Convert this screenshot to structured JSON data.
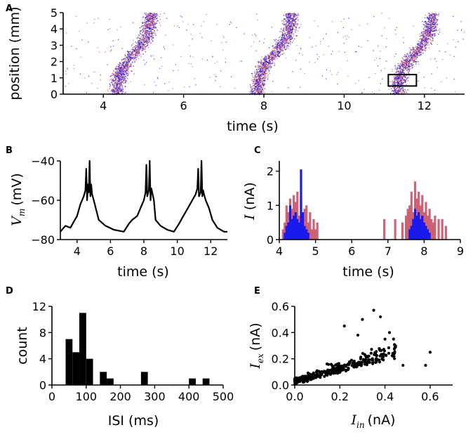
{
  "colors": {
    "excitatory": "#c8546a",
    "inhibitory": "#1a1aee",
    "trace": "#000000"
  },
  "chart_data": [
    {
      "panel": "A",
      "type": "scatter",
      "title": "",
      "xlabel": "time (s)",
      "ylabel": "position (mm)",
      "xlim": [
        3,
        13
      ],
      "ylim": [
        0,
        5
      ],
      "xticks": [
        4,
        6,
        8,
        10,
        12
      ],
      "yticks": [
        0,
        1,
        2,
        3,
        4,
        5
      ],
      "series": [
        {
          "name": "excitatory spikes",
          "color": "#c8546a"
        },
        {
          "name": "inhibitory spikes",
          "color": "#1a1aee"
        }
      ],
      "bursts": [
        {
          "start": 4.0,
          "end": 5.6,
          "position_min": 0,
          "position_max": 5
        },
        {
          "start": 7.5,
          "end": 9.1,
          "position_min": 0,
          "position_max": 5
        },
        {
          "start": 11.0,
          "end": 12.6,
          "position_min": 0,
          "position_max": 5
        }
      ],
      "annotation_box": {
        "x0": 11.1,
        "x1": 11.8,
        "y0": 0.5,
        "y1": 1.2
      }
    },
    {
      "panel": "B",
      "type": "line",
      "xlabel": "time (s)",
      "ylabel_math": "V",
      "ylabel_sub": "m",
      "ylabel_units": "(mV)",
      "xlim": [
        3,
        13
      ],
      "ylim": [
        -80,
        -40
      ],
      "xticks": [
        4,
        6,
        8,
        10,
        12
      ],
      "yticks": [
        -80,
        -60,
        -40
      ],
      "series": [
        {
          "name": "membrane potential",
          "color": "#000000",
          "x": [
            3.0,
            3.3,
            3.6,
            3.8,
            4.0,
            4.2,
            4.4,
            4.5,
            4.55,
            4.6,
            4.65,
            4.7,
            4.75,
            4.8,
            4.85,
            4.9,
            5.0,
            5.3,
            5.7,
            6.2,
            6.8,
            7.1,
            7.3,
            7.6,
            7.8,
            8.0,
            8.1,
            8.15,
            8.2,
            8.3,
            8.35,
            8.4,
            8.45,
            8.5,
            8.55,
            8.6,
            8.7,
            9.0,
            9.4,
            9.8,
            10.1,
            10.3,
            10.5,
            10.7,
            10.9,
            11.1,
            11.2,
            11.25,
            11.3,
            11.4,
            11.45,
            11.5,
            11.55,
            11.6,
            11.7,
            11.9,
            12.1,
            12.4,
            12.8,
            13.0
          ],
          "y": [
            -76,
            -73,
            -74,
            -71,
            -68,
            -62,
            -58,
            -55,
            -44,
            -60,
            -52,
            -56,
            -40,
            -58,
            -52,
            -57,
            -60,
            -70,
            -73,
            -75,
            -76,
            -72,
            -70,
            -68,
            -64,
            -60,
            -56,
            -42,
            -58,
            -55,
            -40,
            -60,
            -54,
            -56,
            -58,
            -60,
            -70,
            -73,
            -75,
            -76,
            -72,
            -69,
            -66,
            -63,
            -60,
            -57,
            -54,
            -44,
            -58,
            -56,
            -40,
            -58,
            -55,
            -57,
            -60,
            -64,
            -70,
            -74,
            -76,
            -76
          ]
        }
      ]
    },
    {
      "panel": "C",
      "type": "bar",
      "xlabel": "time (s)",
      "ylabel_math": "I",
      "ylabel_units": "(nA)",
      "xlim": [
        4,
        9
      ],
      "ylim": [
        0,
        2.3
      ],
      "xticks": [
        4,
        5,
        6,
        7,
        8,
        9
      ],
      "yticks": [
        0,
        1,
        2
      ],
      "series": [
        {
          "name": "excitatory current",
          "color": "#c8546a",
          "x": [
            4.1,
            4.15,
            4.2,
            4.25,
            4.3,
            4.35,
            4.4,
            4.45,
            4.5,
            4.55,
            4.6,
            4.65,
            4.7,
            4.75,
            4.8,
            4.85,
            4.9,
            4.95,
            5.0,
            5.05,
            6.9,
            7.2,
            7.4,
            7.5,
            7.55,
            7.6,
            7.65,
            7.7,
            7.75,
            7.8,
            7.85,
            7.9,
            7.95,
            8.0,
            8.05,
            8.1,
            8.15,
            8.2,
            8.25,
            8.3,
            8.4,
            8.5,
            8.6
          ],
          "y": [
            0.3,
            0.5,
            1.0,
            0.8,
            1.2,
            0.9,
            1.3,
            1.1,
            1.4,
            0.7,
            1.2,
            0.6,
            0.9,
            1.0,
            0.5,
            0.8,
            0.3,
            0.6,
            0.3,
            0.5,
            0.6,
            0.6,
            0.5,
            0.7,
            0.9,
            1.0,
            1.4,
            0.8,
            1.7,
            1.2,
            1.4,
            1.0,
            1.3,
            0.8,
            1.1,
            0.7,
            0.9,
            0.6,
            0.5,
            0.7,
            0.6,
            0.6,
            0.4
          ]
        },
        {
          "name": "inhibitory current",
          "color": "#1a1aee",
          "x": [
            4.15,
            4.2,
            4.25,
            4.3,
            4.35,
            4.4,
            4.45,
            4.5,
            4.55,
            4.6,
            4.65,
            4.7,
            4.75,
            4.8,
            7.6,
            7.65,
            7.7,
            7.75,
            7.8,
            7.85,
            7.9,
            7.95,
            8.0,
            8.05,
            8.1,
            8.15
          ],
          "y": [
            0.2,
            0.4,
            0.5,
            1.0,
            0.6,
            0.7,
            0.8,
            0.6,
            0.5,
            2.05,
            0.8,
            0.4,
            0.3,
            0.2,
            0.3,
            0.4,
            0.6,
            0.9,
            0.7,
            0.8,
            0.6,
            0.7,
            0.5,
            0.4,
            0.3,
            0.2
          ]
        }
      ]
    },
    {
      "panel": "D",
      "type": "bar",
      "xlabel": "ISI (ms)",
      "ylabel": "count",
      "xlim": [
        0,
        500
      ],
      "ylim": [
        0,
        12
      ],
      "xticks": [
        0,
        100,
        200,
        300,
        400,
        500
      ],
      "yticks": [
        0,
        4,
        8,
        12
      ],
      "bin_width": 20,
      "bins": [
        {
          "start": 40,
          "count": 7
        },
        {
          "start": 60,
          "count": 5
        },
        {
          "start": 80,
          "count": 11
        },
        {
          "start": 100,
          "count": 4
        },
        {
          "start": 140,
          "count": 2
        },
        {
          "start": 160,
          "count": 1
        },
        {
          "start": 260,
          "count": 2
        },
        {
          "start": 400,
          "count": 1
        },
        {
          "start": 440,
          "count": 1
        }
      ],
      "color": "#000000"
    },
    {
      "panel": "E",
      "type": "scatter",
      "xlabel_math": "I",
      "xlabel_sub": "in",
      "xlabel_units": "(nA)",
      "ylabel_math": "I",
      "ylabel_sub": "ex",
      "ylabel_units": "(nA)",
      "xlim": [
        0,
        0.7
      ],
      "ylim": [
        0,
        0.6
      ],
      "xticks": [
        0.0,
        0.2,
        0.4,
        0.6
      ],
      "yticks": [
        0.0,
        0.2,
        0.4,
        0.6
      ],
      "color": "#000000",
      "outliers": [
        [
          0.35,
          0.57
        ],
        [
          0.22,
          0.45
        ],
        [
          0.38,
          0.52
        ],
        [
          0.42,
          0.4
        ],
        [
          0.6,
          0.25
        ],
        [
          0.48,
          0.15
        ],
        [
          0.58,
          0.15
        ],
        [
          0.3,
          0.5
        ],
        [
          0.4,
          0.35
        ],
        [
          0.28,
          0.38
        ],
        [
          0.44,
          0.22
        ]
      ]
    }
  ],
  "panels": {
    "a": "A",
    "b": "B",
    "c": "C",
    "d": "D",
    "e": "E"
  }
}
